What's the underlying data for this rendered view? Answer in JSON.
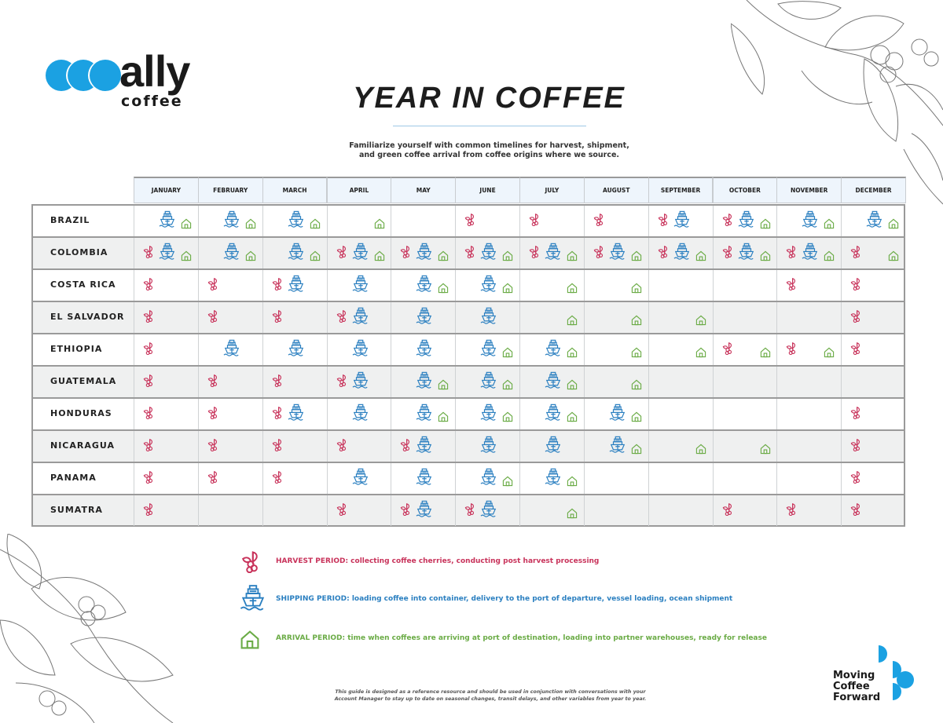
{
  "logo": {
    "word": "ally",
    "sub": "coffee",
    "brand_color": "#1ba1e2"
  },
  "title": "YEAR IN COFFEE",
  "intro": [
    "Familiarize yourself with common timelines for harvest, shipment,",
    "and green coffee arrival from coffee origins where we source."
  ],
  "months": [
    "JANUARY",
    "FEBRUARY",
    "MARCH",
    "APRIL",
    "MAY",
    "JUNE",
    "JULY",
    "AUGUST",
    "SEPTEMBER",
    "OCTOBER",
    "NOVEMBER",
    "DECEMBER"
  ],
  "colors": {
    "harvest": "#c8325a",
    "shipping": "#2a7fc0",
    "arrival": "#6aab45"
  },
  "origins": [
    {
      "name": "BRAZIL",
      "periods": [
        "-SA",
        "-SA",
        "-SA",
        "--A",
        "---",
        "H--",
        "H--",
        "H--",
        "HS-",
        "HSA",
        "-SA",
        "-SA"
      ]
    },
    {
      "name": "COLOMBIA",
      "periods": [
        "HSA",
        "-SA",
        "-SA",
        "HSA",
        "HSA",
        "HSA",
        "HSA",
        "HSA",
        "HSA",
        "HSA",
        "HSA",
        "H-A"
      ]
    },
    {
      "name": "COSTA RICA",
      "periods": [
        "H--",
        "H--",
        "HS-",
        "-S-",
        "-SA",
        "-SA",
        "--A",
        "--A",
        "---",
        "---",
        "H--",
        "H--"
      ]
    },
    {
      "name": "EL SALVADOR",
      "periods": [
        "H--",
        "H--",
        "H--",
        "HS-",
        "-S-",
        "-S-",
        "--A",
        "--A",
        "--A",
        "---",
        "---",
        "H--"
      ]
    },
    {
      "name": "ETHIOPIA",
      "periods": [
        "H--",
        "-S-",
        "-S-",
        "-S-",
        "-S-",
        "-SA",
        "-SA",
        "--A",
        "--A",
        "H-A",
        "H-A",
        "H--"
      ]
    },
    {
      "name": "GUATEMALA",
      "periods": [
        "H--",
        "H--",
        "H--",
        "HS-",
        "-SA",
        "-SA",
        "-SA",
        "--A",
        "---",
        "---",
        "---",
        "---"
      ]
    },
    {
      "name": "HONDURAS",
      "periods": [
        "H--",
        "H--",
        "HS-",
        "-S-",
        "-SA",
        "-SA",
        "-SA",
        "-SA",
        "---",
        "---",
        "---",
        "H--"
      ]
    },
    {
      "name": "NICARAGUA",
      "periods": [
        "H--",
        "H--",
        "H--",
        "H--",
        "HS-",
        "-S-",
        "-S-",
        "-SA",
        "--A",
        "--A",
        "---",
        "H--"
      ]
    },
    {
      "name": "PANAMA",
      "periods": [
        "H--",
        "H--",
        "H--",
        "-S-",
        "-S-",
        "-SA",
        "-SA",
        "---",
        "---",
        "---",
        "---",
        "H--"
      ]
    },
    {
      "name": "SUMATRA",
      "periods": [
        "H--",
        "---",
        "---",
        "H--",
        "HS-",
        "HS-",
        "--A",
        "---",
        "---",
        "H--",
        "H--",
        "H--"
      ]
    }
  ],
  "legend": {
    "harvest": "HARVEST PERIOD: collecting coffee cherries, conducting post harvest processing",
    "shipping": "SHIPPING PERIOD: loading coffee into container, delivery to the port of departure, vessel loading, ocean shipment",
    "arrival": "ARRIVAL PERIOD: time when coffees are arriving at port of destination, loading into partner warehouses, ready for release"
  },
  "footnote": [
    "This guide is designed as a reference resource and should be used in conjunction with conversations with your",
    "Account Manager to stay up to date on seasonal changes, transit delays, and other variables from year to year."
  ],
  "tagline": [
    "Moving",
    "Coffee",
    "Forward"
  ]
}
